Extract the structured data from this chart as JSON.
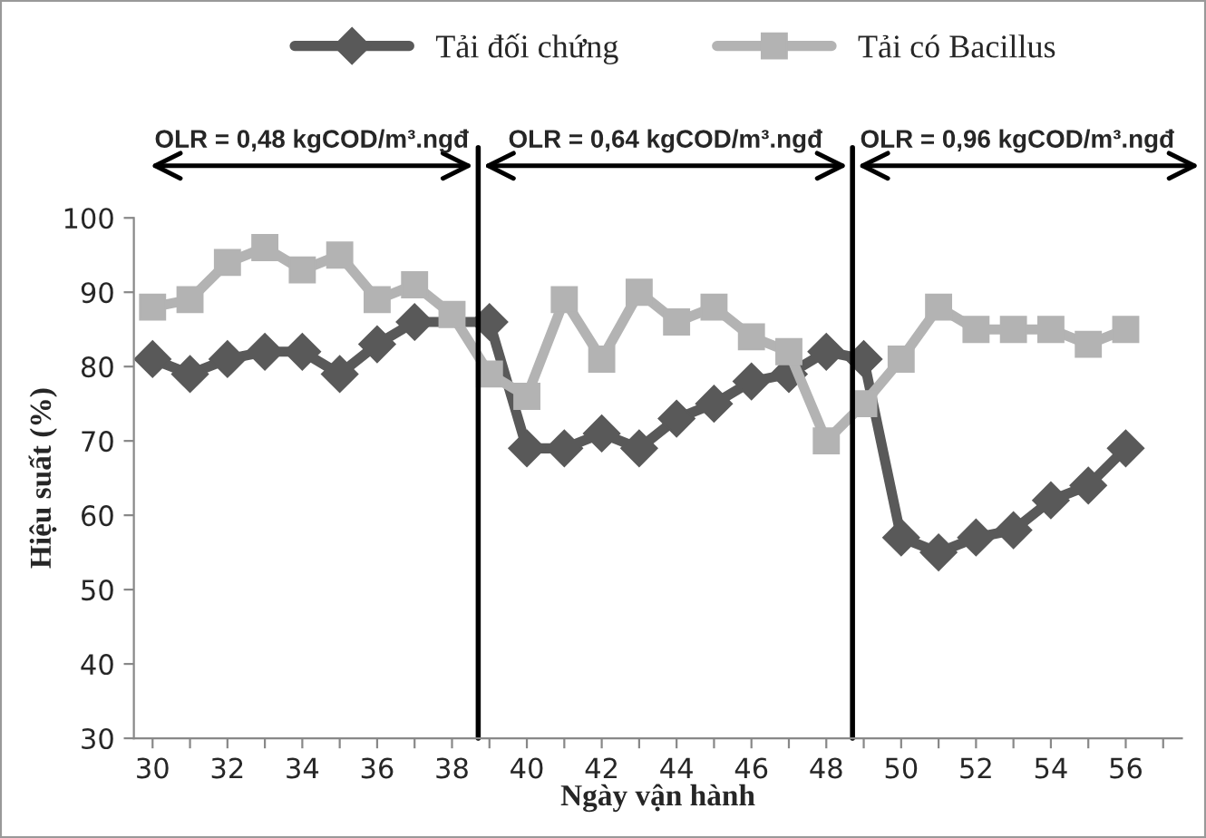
{
  "chart_data": {
    "type": "line",
    "xlabel": "Ngày vận hành",
    "ylabel": "Hiệu suất (%)",
    "x": [
      30,
      31,
      32,
      33,
      34,
      35,
      36,
      37,
      38,
      39,
      40,
      41,
      42,
      43,
      44,
      45,
      46,
      47,
      48,
      49,
      50,
      51,
      52,
      53,
      54,
      55,
      56
    ],
    "series": [
      {
        "name": "Tải đối chứng",
        "color": "#595959",
        "marker": "diamond",
        "values": [
          81,
          79,
          81,
          82,
          82,
          79,
          83,
          86,
          null,
          86,
          69,
          69,
          71,
          69,
          73,
          75,
          78,
          79,
          82,
          81,
          57,
          55,
          57,
          58,
          62,
          64,
          69
        ]
      },
      {
        "name": "Tải có Bacillus",
        "color": "#b3b3b3",
        "marker": "square",
        "values": [
          88,
          89,
          94,
          96,
          93,
          95,
          89,
          91,
          87,
          79,
          76,
          89,
          81,
          90,
          86,
          88,
          84,
          82,
          70,
          75,
          81,
          88,
          85,
          85,
          85,
          83,
          85
        ]
      }
    ],
    "xlim": [
      29.5,
      57.5
    ],
    "xticks": [
      30,
      {
        "value": 31,
        "label": null
      },
      32,
      {
        "value": 33,
        "label": null
      },
      34,
      {
        "value": 35,
        "label": null
      },
      36,
      {
        "value": 37,
        "label": null
      },
      38,
      {
        "value": 39,
        "label": null
      },
      40,
      {
        "value": 41,
        "label": null
      },
      42,
      {
        "value": 43,
        "label": null
      },
      44,
      {
        "value": 45,
        "label": null
      },
      46,
      {
        "value": 47,
        "label": null
      },
      48,
      {
        "value": 49,
        "label": null
      },
      50,
      {
        "value": 51,
        "label": null
      },
      52,
      {
        "value": 53,
        "label": null
      },
      54,
      {
        "value": 55,
        "label": null
      },
      56,
      {
        "value": 57,
        "label": null
      }
    ],
    "ylim": [
      30,
      100
    ],
    "yticks": [
      30,
      40,
      50,
      60,
      70,
      80,
      90,
      100
    ],
    "ref_lines": [
      {
        "axis": "x",
        "value": 38.7,
        "color": "#000000"
      },
      {
        "axis": "x",
        "value": 48.7,
        "color": "#000000"
      }
    ],
    "annotations": [
      "OLR = 0,48 kgCOD/m³.ngđ",
      "OLR = 0,64 kgCOD/m³.ngđ",
      "OLR = 0,96 kgCOD/m³.ngđ"
    ],
    "grid": false,
    "legend": "top",
    "line_style": "solid"
  }
}
